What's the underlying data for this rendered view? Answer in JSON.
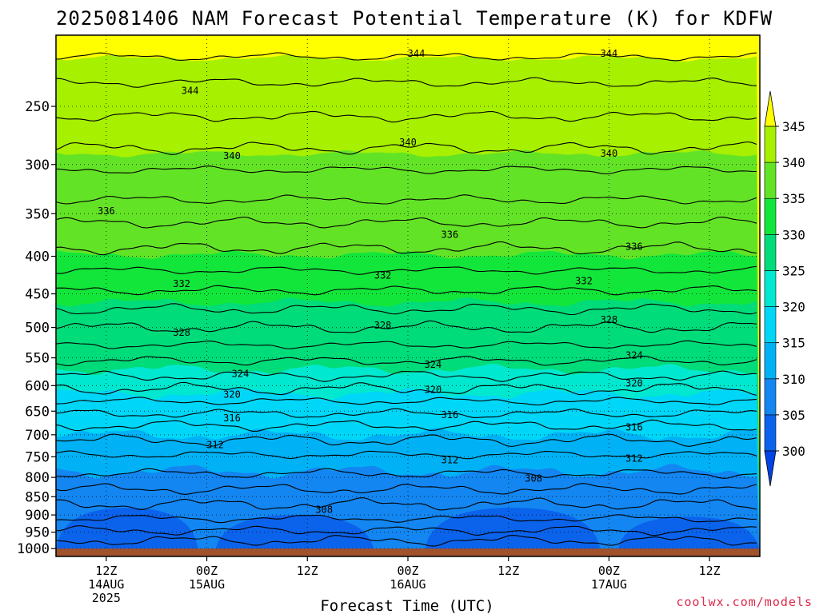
{
  "chart_data": {
    "type": "contour",
    "title": "2025081406 NAM Forecast Potential Temperature (K) for KDFW",
    "xlabel": "Forecast Time (UTC)",
    "ylabel": "",
    "y_axis": {
      "scale": "log-pressure",
      "unit": "hPa",
      "ticks": [
        250,
        300,
        350,
        400,
        450,
        500,
        550,
        600,
        650,
        700,
        750,
        800,
        850,
        900,
        950,
        1000
      ],
      "tick_labels": [
        "250",
        "300",
        "350",
        "400",
        "450",
        "500",
        "550",
        "600",
        "650",
        "700",
        "750",
        "800",
        "850",
        "900",
        "950",
        "1000"
      ],
      "range": [
        1025,
        200
      ],
      "reversed": true
    },
    "x_axis": {
      "range": [
        "2025-08-14T06Z",
        "2025-08-17T18Z"
      ],
      "ticks": [
        {
          "time": "2025-08-14T12Z",
          "lines": [
            "12Z",
            "14AUG",
            "2025"
          ]
        },
        {
          "time": "2025-08-15T00Z",
          "lines": [
            "00Z",
            "15AUG"
          ]
        },
        {
          "time": "2025-08-15T12Z",
          "lines": [
            "12Z"
          ]
        },
        {
          "time": "2025-08-16T00Z",
          "lines": [
            "00Z",
            "16AUG"
          ]
        },
        {
          "time": "2025-08-16T12Z",
          "lines": [
            "12Z"
          ]
        },
        {
          "time": "2025-08-17T00Z",
          "lines": [
            "00Z",
            "17AUG"
          ]
        },
        {
          "time": "2025-08-17T12Z",
          "lines": [
            "12Z"
          ]
        }
      ]
    },
    "grid": true,
    "colorbar": {
      "levels": [
        300,
        305,
        310,
        315,
        320,
        325,
        330,
        335,
        340,
        345
      ],
      "labels": [
        "300",
        "305",
        "310",
        "315",
        "320",
        "325",
        "330",
        "335",
        "340",
        "345"
      ],
      "colors": [
        "#0044e6",
        "#0b63ec",
        "#1386f1",
        "#00b2f5",
        "#00d6f7",
        "#00e8cf",
        "#00dc7a",
        "#13e63a",
        "#63e326",
        "#a6f000",
        "#e6ff10",
        "#ffff00"
      ],
      "extend": "both",
      "placement": "right"
    },
    "contour_interval": 2,
    "contour_labels": [
      {
        "value": "344",
        "time": "2025-08-14T22Z",
        "p": 238
      },
      {
        "value": "344",
        "time": "2025-08-16T01Z",
        "p": 212
      },
      {
        "value": "344",
        "time": "2025-08-17T00Z",
        "p": 212
      },
      {
        "value": "340",
        "time": "2025-08-15T03Z",
        "p": 292
      },
      {
        "value": "340",
        "time": "2025-08-16T00Z",
        "p": 280
      },
      {
        "value": "340",
        "time": "2025-08-17T00Z",
        "p": 290
      },
      {
        "value": "336",
        "time": "2025-08-14T12Z",
        "p": 347
      },
      {
        "value": "336",
        "time": "2025-08-16T05Z",
        "p": 374
      },
      {
        "value": "336",
        "time": "2025-08-17T03Z",
        "p": 388
      },
      {
        "value": "332",
        "time": "2025-08-14T21Z",
        "p": 436
      },
      {
        "value": "332",
        "time": "2025-08-15T21Z",
        "p": 425
      },
      {
        "value": "332",
        "time": "2025-08-16T21Z",
        "p": 432
      },
      {
        "value": "328",
        "time": "2025-08-14T21Z",
        "p": 508
      },
      {
        "value": "328",
        "time": "2025-08-15T21Z",
        "p": 497
      },
      {
        "value": "328",
        "time": "2025-08-17T00Z",
        "p": 488
      },
      {
        "value": "324",
        "time": "2025-08-15T04Z",
        "p": 578
      },
      {
        "value": "324",
        "time": "2025-08-16T03Z",
        "p": 562
      },
      {
        "value": "324",
        "time": "2025-08-17T03Z",
        "p": 546
      },
      {
        "value": "320",
        "time": "2025-08-15T03Z",
        "p": 617
      },
      {
        "value": "320",
        "time": "2025-08-16T03Z",
        "p": 608
      },
      {
        "value": "320",
        "time": "2025-08-17T03Z",
        "p": 596
      },
      {
        "value": "316",
        "time": "2025-08-15T03Z",
        "p": 664
      },
      {
        "value": "316",
        "time": "2025-08-16T05Z",
        "p": 658
      },
      {
        "value": "316",
        "time": "2025-08-17T03Z",
        "p": 684
      },
      {
        "value": "312",
        "time": "2025-08-15T01Z",
        "p": 723
      },
      {
        "value": "312",
        "time": "2025-08-16T05Z",
        "p": 758
      },
      {
        "value": "312",
        "time": "2025-08-17T03Z",
        "p": 754
      },
      {
        "value": "308",
        "time": "2025-08-15T14Z",
        "p": 885
      },
      {
        "value": "308",
        "time": "2025-08-16T15Z",
        "p": 803
      }
    ],
    "background_fill": {
      "isotherm_pressures": [
        {
          "value": 344,
          "p": 215
        },
        {
          "value": 342,
          "p": 245
        },
        {
          "value": 340,
          "p": 290
        },
        {
          "value": 338,
          "p": 320
        },
        {
          "value": 336,
          "p": 370
        },
        {
          "value": 334,
          "p": 398
        },
        {
          "value": 332,
          "p": 430
        },
        {
          "value": 330,
          "p": 462
        },
        {
          "value": 328,
          "p": 500
        },
        {
          "value": 326,
          "p": 535
        },
        {
          "value": 324,
          "p": 570
        },
        {
          "value": 322,
          "p": 595
        },
        {
          "value": 320,
          "p": 615
        },
        {
          "value": 318,
          "p": 640
        },
        {
          "value": 316,
          "p": 665
        },
        {
          "value": 314,
          "p": 700
        },
        {
          "value": 312,
          "p": 740
        },
        {
          "value": 310,
          "p": 785
        }
      ]
    },
    "surface_band": {
      "color": "#a0522d",
      "from_p": 1000
    }
  },
  "credit": "coolwx.com/models"
}
